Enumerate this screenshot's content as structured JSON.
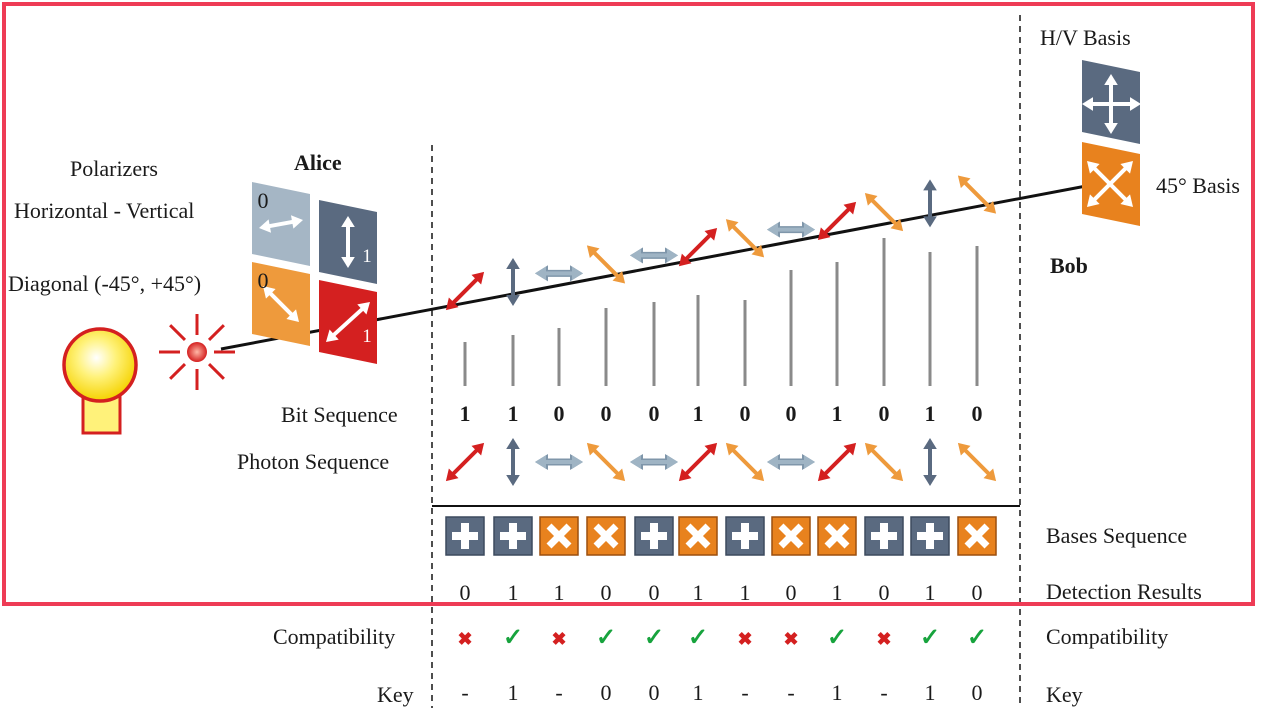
{
  "labels": {
    "alice": "Alice",
    "bob": "Bob",
    "polarizers": "Polarizers",
    "hv_polarizer": "Horizontal - Vertical",
    "diag_polarizer": "Diagonal (-45°, +45°)",
    "hv_basis": "H/V Basis",
    "diag_basis": "45° Basis",
    "bit_sequence": "Bit Sequence",
    "photon_sequence": "Photon Sequence",
    "bases_sequence": "Bases Sequence",
    "detection_results": "Detection Results",
    "compatibility": "Compatibility",
    "key": "Key"
  },
  "polarizer_tiles": [
    {
      "name": "horizontal-polarizer",
      "digit": "0",
      "color": "#a5b6c5",
      "arrow": "h"
    },
    {
      "name": "vertical-polarizer",
      "digit": "1",
      "color": "#5a6a80",
      "arrow": "v"
    },
    {
      "name": "minus45-polarizer",
      "digit": "0",
      "color": "#ee9a3c",
      "arrow": "d2"
    },
    {
      "name": "plus45-polarizer",
      "digit": "1",
      "color": "#d42020",
      "arrow": "d1"
    }
  ],
  "colors": {
    "frame": "#ee3b55",
    "hv_tile": "#5a6a80",
    "diag_tile": "#e8821e",
    "h_photon": "#9fb4c4",
    "v_photon": "#5a6a80",
    "plus45_photon": "#d42020",
    "minus45_photon": "#ee9a3c",
    "match": "#17a33d",
    "mismatch": "#d42020"
  },
  "sequence": {
    "bits": [
      "1",
      "1",
      "0",
      "0",
      "0",
      "1",
      "0",
      "0",
      "1",
      "0",
      "1",
      "0"
    ],
    "photons": [
      "plus45",
      "vertical",
      "horizontal",
      "minus45",
      "horizontal",
      "plus45",
      "minus45",
      "horizontal",
      "plus45",
      "minus45",
      "vertical",
      "minus45"
    ],
    "bases": [
      "hv",
      "hv",
      "diag",
      "diag",
      "hv",
      "diag",
      "hv",
      "diag",
      "diag",
      "hv",
      "hv",
      "diag"
    ],
    "detection": [
      "0",
      "1",
      "1",
      "0",
      "0",
      "1",
      "1",
      "0",
      "1",
      "0",
      "1",
      "0"
    ],
    "compatibility": [
      "✖",
      "✓",
      "✖",
      "✓",
      "✓",
      "✓",
      "✖",
      "✖",
      "✓",
      "✖",
      "✓",
      "✓"
    ],
    "key": [
      "-",
      "1",
      "-",
      "0",
      "0",
      "1",
      "-",
      "-",
      "1",
      "-",
      "1",
      "0"
    ]
  }
}
